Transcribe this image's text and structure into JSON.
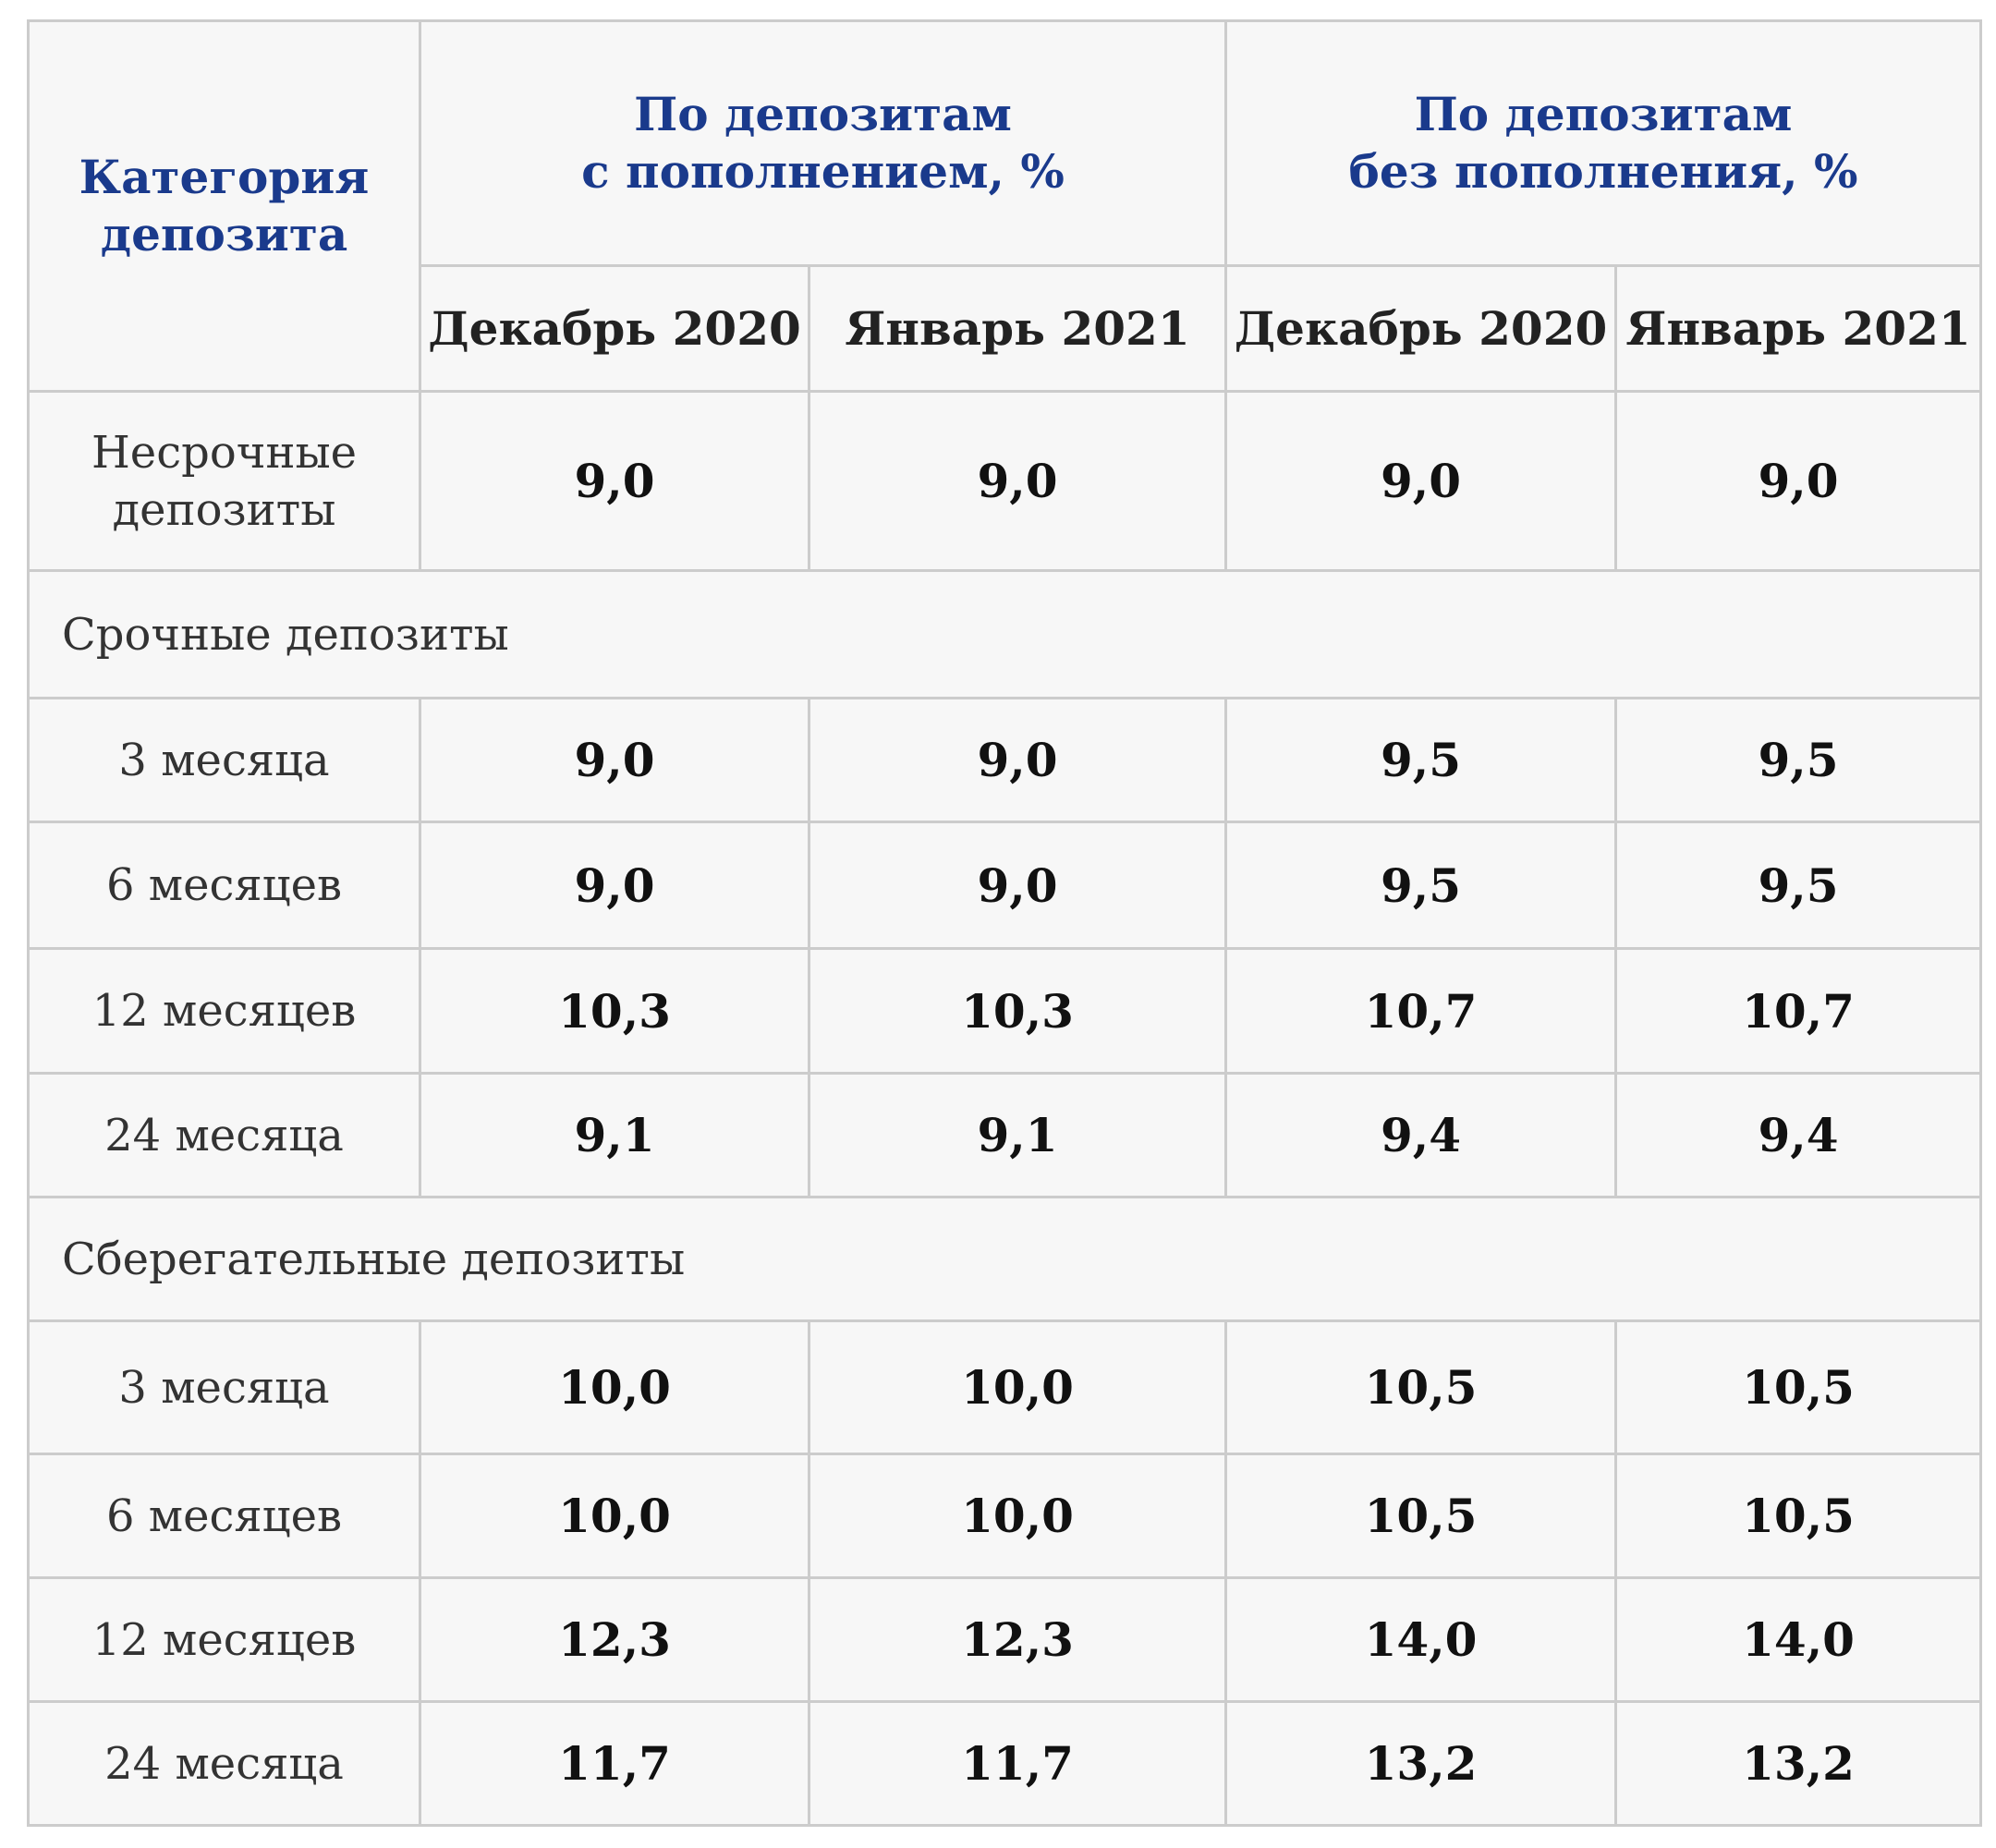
{
  "table": {
    "header": {
      "category_line1": "Категория",
      "category_line2": "депозита",
      "group_with_topup_line1": "По депозитам",
      "group_with_topup_line2": "с пополнением, %",
      "group_without_topup_line1": "По депозитам",
      "group_without_topup_line2": "без пополнения, %",
      "months": [
        "Декабрь 2020",
        "Январь 2021",
        "Декабрь 2020",
        "Январь 2021"
      ]
    },
    "rows": [
      {
        "type": "data",
        "label_line1": "Несрочные",
        "label_line2": "депозиты",
        "values": [
          "9,0",
          "9,0",
          "9,0",
          "9,0"
        ]
      },
      {
        "type": "section",
        "label": "Срочные  депозиты"
      },
      {
        "type": "data",
        "label_line1": "3 месяца",
        "label_line2": "",
        "values": [
          "9,0",
          "9,0",
          "9,5",
          "9,5"
        ]
      },
      {
        "type": "data",
        "label_line1": "6 месяцев",
        "label_line2": "",
        "values": [
          "9,0",
          "9,0",
          "9,5",
          "9,5"
        ]
      },
      {
        "type": "data",
        "label_line1": "12 месяцев",
        "label_line2": "",
        "values": [
          "10,3",
          "10,3",
          "10,7",
          "10,7"
        ]
      },
      {
        "type": "data",
        "label_line1": "24 месяца",
        "label_line2": "",
        "values": [
          "9,1",
          "9,1",
          "9,4",
          "9,4"
        ]
      },
      {
        "type": "section",
        "label": "Сберегательные  депозиты"
      },
      {
        "type": "data",
        "label_line1": "3 месяца",
        "label_line2": "",
        "values": [
          "10,0",
          "10,0",
          "10,5",
          "10,5"
        ]
      },
      {
        "type": "data",
        "label_line1": "6 месяцев",
        "label_line2": "",
        "values": [
          "10,0",
          "10,0",
          "10,5",
          "10,5"
        ]
      },
      {
        "type": "data",
        "label_line1": "12 месяцев",
        "label_line2": "",
        "values": [
          "12,3",
          "12,3",
          "14,0",
          "14,0"
        ]
      },
      {
        "type": "data",
        "label_line1": "24 месяца",
        "label_line2": "",
        "values": [
          "11,7",
          "11,7",
          "13,2",
          "13,2"
        ]
      }
    ]
  }
}
